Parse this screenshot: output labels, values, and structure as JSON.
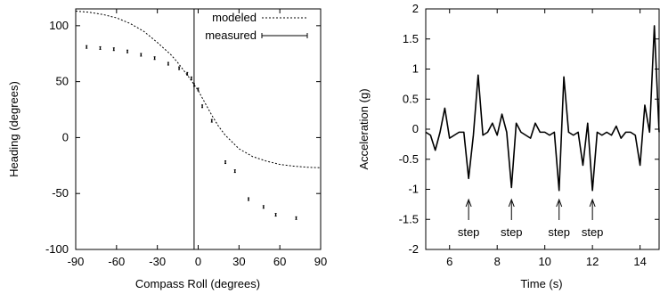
{
  "chart_data": [
    {
      "type": "scatter",
      "xlabel": "Compass Roll (degrees)",
      "ylabel": "Heading (degrees)",
      "xlim": [
        -90,
        90
      ],
      "ylim": [
        -100,
        115
      ],
      "xticks": [
        -90,
        -60,
        -30,
        0,
        30,
        60,
        90
      ],
      "yticks": [
        -100,
        -50,
        0,
        50,
        100
      ],
      "grid": false,
      "legend_position": "top-right",
      "vertical_line_x": -3,
      "series": [
        {
          "name": "modeled",
          "style": "dashed-line",
          "x": [
            -90,
            -80,
            -70,
            -60,
            -50,
            -40,
            -30,
            -20,
            -15,
            -10,
            -5,
            0,
            5,
            10,
            15,
            20,
            30,
            40,
            50,
            60,
            70,
            80,
            90
          ],
          "y": [
            113,
            112,
            110,
            107,
            102,
            95,
            85,
            74,
            67,
            59,
            51,
            42,
            31,
            20,
            10,
            2,
            -10,
            -17,
            -21,
            -24,
            -25.5,
            -26.5,
            -27
          ]
        },
        {
          "name": "measured",
          "style": "error-bars",
          "x": [
            -82,
            -72,
            -62,
            -52,
            -42,
            -32,
            -22,
            -14,
            -8,
            -5,
            -3,
            0,
            3,
            10,
            20,
            27,
            37,
            48,
            57,
            72
          ],
          "y": [
            81,
            80,
            79,
            77,
            74,
            71,
            66,
            62,
            57,
            53,
            47,
            43,
            28,
            15,
            -22,
            -30,
            -55,
            -62,
            -69,
            -72
          ]
        }
      ]
    },
    {
      "type": "line",
      "xlabel": "Time (s)",
      "ylabel": "Acceleration (g)",
      "xlim": [
        5,
        14.8
      ],
      "ylim": [
        -2,
        2
      ],
      "xticks": [
        6,
        8,
        10,
        12,
        14
      ],
      "yticks": [
        -2,
        -1.5,
        -1,
        -0.5,
        0,
        0.5,
        1,
        1.5,
        2
      ],
      "grid": false,
      "series": [
        {
          "x": [
            5.0,
            5.2,
            5.4,
            5.6,
            5.8,
            6.0,
            6.2,
            6.4,
            6.6,
            6.8,
            7.0,
            7.2,
            7.4,
            7.6,
            7.8,
            8.0,
            8.2,
            8.4,
            8.6,
            8.8,
            9.0,
            9.2,
            9.4,
            9.6,
            9.8,
            10.0,
            10.2,
            10.4,
            10.6,
            10.8,
            11.0,
            11.2,
            11.4,
            11.6,
            11.8,
            12.0,
            12.2,
            12.4,
            12.6,
            12.8,
            13.0,
            13.2,
            13.4,
            13.6,
            13.8,
            14.0,
            14.2,
            14.4,
            14.6,
            14.8
          ],
          "y": [
            -0.05,
            -0.1,
            -0.35,
            -0.05,
            0.35,
            -0.15,
            -0.1,
            -0.05,
            -0.05,
            -0.82,
            -0.1,
            0.9,
            -0.1,
            -0.05,
            0.1,
            -0.1,
            0.25,
            -0.05,
            -0.97,
            0.1,
            -0.05,
            -0.1,
            -0.15,
            0.1,
            -0.05,
            -0.05,
            -0.1,
            -0.05,
            -1.02,
            0.87,
            -0.05,
            -0.1,
            -0.05,
            -0.6,
            0.1,
            -1.02,
            -0.05,
            -0.1,
            -0.05,
            -0.1,
            0.05,
            -0.15,
            -0.05,
            -0.05,
            -0.1,
            -0.6,
            0.4,
            -0.05,
            1.72,
            -0.05
          ]
        }
      ],
      "annotations": [
        {
          "text": "step",
          "x": 6.8
        },
        {
          "text": "step",
          "x": 8.6
        },
        {
          "text": "step",
          "x": 10.6
        },
        {
          "text": "step",
          "x": 12.0
        }
      ]
    }
  ]
}
